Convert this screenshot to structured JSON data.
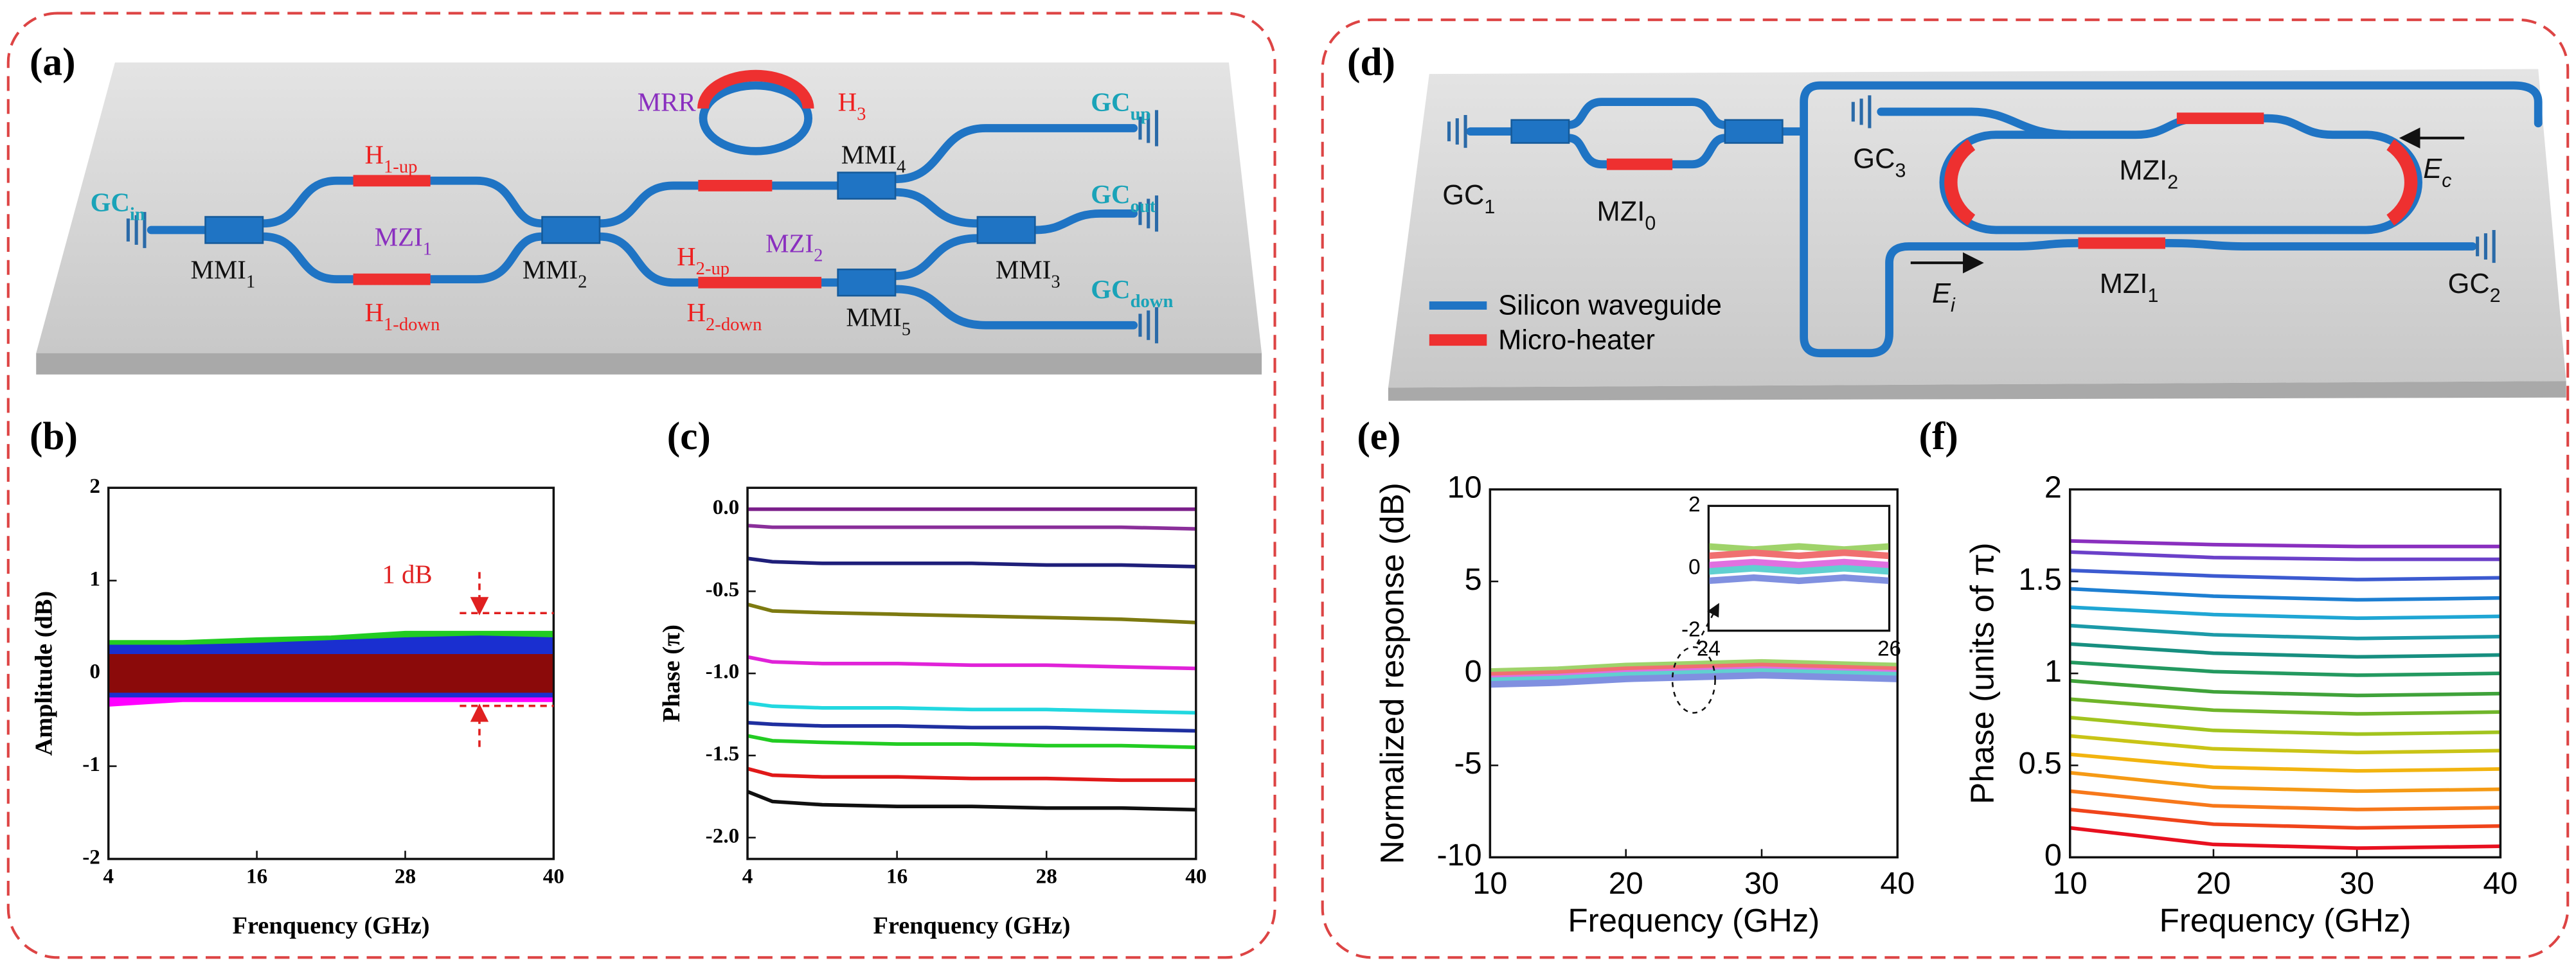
{
  "panel_labels": [
    "(a)",
    "(b)",
    "(c)",
    "(d)",
    "(e)",
    "(f)"
  ],
  "diagram_a": {
    "labels": [
      {
        "text": "GC",
        "sub": "in"
      },
      {
        "text": "MMI",
        "sub": "1"
      },
      {
        "text": "H",
        "sub": "1-up"
      },
      {
        "text": "MZI",
        "sub": "1"
      },
      {
        "text": "H",
        "sub": "1-down"
      },
      {
        "text": "MMI",
        "sub": "2"
      },
      {
        "text": "MRR"
      },
      {
        "text": "H",
        "sub": "3"
      },
      {
        "text": "MMI",
        "sub": "4"
      },
      {
        "text": "H",
        "sub": "2-up"
      },
      {
        "text": "MZI",
        "sub": "2"
      },
      {
        "text": "H",
        "sub": "2-down"
      },
      {
        "text": "MMI",
        "sub": "5"
      },
      {
        "text": "MMI",
        "sub": "3"
      },
      {
        "text": "GC",
        "sub": "up"
      },
      {
        "text": "GC",
        "sub": "out"
      },
      {
        "text": "GC",
        "sub": "down"
      }
    ]
  },
  "diagram_d": {
    "labels": [
      {
        "text": "GC",
        "sub": "1"
      },
      {
        "text": "MZI",
        "sub": "0"
      },
      {
        "text": "GC",
        "sub": "3"
      },
      {
        "text": "MZI",
        "sub": "2"
      },
      {
        "text": "E",
        "sub": "c"
      },
      {
        "text": "E",
        "sub": "i"
      },
      {
        "text": "MZI",
        "sub": "1"
      },
      {
        "text": "GC",
        "sub": "2"
      }
    ],
    "legend": [
      "Silicon waveguide",
      "Micro-heater"
    ]
  },
  "chart_data": [
    {
      "type": "band",
      "xlabel": "Frenquency (GHz)",
      "ylabel": "Amplitude (dB)",
      "xlim": [
        4,
        40
      ],
      "ylim": [
        -2,
        2
      ],
      "xticks": [
        4,
        16,
        28,
        40
      ],
      "yticks": [
        -2,
        -1,
        0,
        1,
        2
      ],
      "x": [
        4,
        10,
        16,
        22,
        28,
        34,
        40
      ],
      "series": [
        {
          "color": "#ff00ff",
          "high": [
            0.2,
            0.2,
            0.2,
            0.2,
            0.2,
            0.25,
            0.2
          ],
          "low": [
            -0.35,
            -0.3,
            -0.3,
            -0.3,
            -0.3,
            -0.3,
            -0.3
          ]
        },
        {
          "color": "#22cc22",
          "high": [
            0.35,
            0.35,
            0.38,
            0.4,
            0.45,
            0.45,
            0.45
          ],
          "low": [
            -0.1,
            -0.1,
            -0.1,
            -0.1,
            -0.1,
            -0.1,
            -0.1
          ]
        },
        {
          "color": "#1a2fd0",
          "high": [
            0.3,
            0.3,
            0.32,
            0.35,
            0.38,
            0.4,
            0.38
          ],
          "low": [
            -0.25,
            -0.25,
            -0.25,
            -0.25,
            -0.25,
            -0.25,
            -0.25
          ]
        },
        {
          "color": "#8b0a0a",
          "high": [
            0.2,
            0.2,
            0.2,
            0.2,
            0.2,
            0.2,
            0.2
          ],
          "low": [
            -0.2,
            -0.2,
            -0.2,
            -0.2,
            -0.2,
            -0.2,
            -0.2
          ]
        }
      ],
      "annotation": "1 dB",
      "bracket_x": 34,
      "bracket": [
        -0.35,
        0.65
      ]
    },
    {
      "type": "line",
      "xlabel": "Frenquency (GHz)",
      "ylabel": "Phase (π)",
      "xlim": [
        4,
        40
      ],
      "ylim": [
        -2.13,
        0.13
      ],
      "xticks": [
        4,
        16,
        28,
        40
      ],
      "yticks": [
        {
          "value": 0,
          "label": "0.0"
        },
        -0.5,
        {
          "value": -1,
          "label": "-1.0"
        },
        -1.5,
        {
          "value": -2,
          "label": "-2.0"
        }
      ],
      "x": [
        4,
        6,
        10,
        16,
        22,
        28,
        34,
        40
      ],
      "series": [
        {
          "color": "#7b1f8a",
          "values": [
            0,
            0,
            0,
            0,
            0,
            0,
            0,
            0
          ]
        },
        {
          "color": "#8a2f9a",
          "values": [
            -0.1,
            -0.11,
            -0.11,
            -0.11,
            -0.11,
            -0.11,
            -0.11,
            -0.12
          ]
        },
        {
          "color": "#1f1f7a",
          "values": [
            -0.3,
            -0.32,
            -0.33,
            -0.33,
            -0.33,
            -0.34,
            -0.34,
            -0.35
          ]
        },
        {
          "color": "#7d7a10",
          "values": [
            -0.58,
            -0.62,
            -0.63,
            -0.64,
            -0.65,
            -0.66,
            -0.67,
            -0.69
          ]
        },
        {
          "color": "#e022d8",
          "values": [
            -0.9,
            -0.93,
            -0.94,
            -0.94,
            -0.95,
            -0.95,
            -0.96,
            -0.97
          ]
        },
        {
          "color": "#22d8e0",
          "values": [
            -1.18,
            -1.2,
            -1.21,
            -1.21,
            -1.22,
            -1.22,
            -1.23,
            -1.24
          ]
        },
        {
          "color": "#1f2fa0",
          "values": [
            -1.3,
            -1.31,
            -1.32,
            -1.32,
            -1.33,
            -1.33,
            -1.34,
            -1.35
          ]
        },
        {
          "color": "#22cc22",
          "values": [
            -1.38,
            -1.41,
            -1.42,
            -1.43,
            -1.43,
            -1.44,
            -1.44,
            -1.45
          ]
        },
        {
          "color": "#e01818",
          "values": [
            -1.58,
            -1.62,
            -1.63,
            -1.63,
            -1.64,
            -1.64,
            -1.65,
            -1.65
          ]
        },
        {
          "color": "#101010",
          "values": [
            -1.72,
            -1.78,
            -1.8,
            -1.81,
            -1.81,
            -1.82,
            -1.82,
            -1.83
          ]
        }
      ]
    },
    {
      "type": "line",
      "xlabel": "Frequency (GHz)",
      "ylabel": "Normalized response (dB)",
      "xlim": [
        10,
        40
      ],
      "ylim": [
        -10,
        10
      ],
      "xticks": [
        10,
        20,
        30,
        40
      ],
      "yticks": [
        -10,
        -5,
        0,
        5,
        10
      ],
      "x": [
        10,
        15,
        20,
        25,
        30,
        35,
        40
      ],
      "series": [
        {
          "color": "#9fd36a",
          "values": [
            0.1,
            0.2,
            0.4,
            0.5,
            0.6,
            0.5,
            0.4
          ]
        },
        {
          "color": "#f07070",
          "values": [
            -0.1,
            0,
            0.2,
            0.3,
            0.4,
            0.3,
            0.2
          ]
        },
        {
          "color": "#e070e0",
          "values": [
            -0.3,
            -0.2,
            0,
            0.1,
            0.2,
            0.1,
            0
          ]
        },
        {
          "color": "#60d0d0",
          "values": [
            -0.4,
            -0.3,
            -0.1,
            0,
            0.1,
            0,
            -0.1
          ]
        },
        {
          "color": "#8090e0",
          "values": [
            -0.6,
            -0.5,
            -0.3,
            -0.2,
            -0.1,
            -0.2,
            -0.3
          ]
        }
      ],
      "inset": {
        "xlim": [
          24,
          26
        ],
        "ylim": [
          -2,
          2
        ],
        "xticks": [
          24,
          26
        ],
        "yticks": [
          -2,
          0,
          2
        ],
        "x": [
          24,
          24.5,
          25,
          25.5,
          26
        ],
        "series": [
          {
            "color": "#9fd36a",
            "values": [
              0.7,
              0.6,
              0.7,
              0.6,
              0.7
            ]
          },
          {
            "color": "#f07070",
            "values": [
              0.4,
              0.5,
              0.4,
              0.5,
              0.4
            ]
          },
          {
            "color": "#e070e0",
            "values": [
              0.1,
              0.2,
              0.1,
              0.2,
              0.1
            ]
          },
          {
            "color": "#60d0d0",
            "values": [
              -0.1,
              0,
              -0.1,
              0,
              -0.1
            ]
          },
          {
            "color": "#8090e0",
            "values": [
              -0.4,
              -0.3,
              -0.4,
              -0.3,
              -0.4
            ]
          }
        ]
      }
    },
    {
      "type": "line",
      "xlabel": "Frequency (GHz)",
      "ylabel": "Phase (units of π)",
      "xlim": [
        10,
        40
      ],
      "ylim": [
        0,
        2
      ],
      "xticks": [
        10,
        20,
        30,
        40
      ],
      "yticks": [
        0,
        0.5,
        1,
        1.5,
        2
      ],
      "x": [
        10,
        20,
        30,
        40
      ],
      "series": [
        {
          "color": "#e8101f",
          "values": [
            0.16,
            0.07,
            0.05,
            0.06
          ]
        },
        {
          "color": "#f0441b",
          "values": [
            0.26,
            0.18,
            0.16,
            0.17
          ]
        },
        {
          "color": "#f7781a",
          "values": [
            0.36,
            0.28,
            0.26,
            0.27
          ]
        },
        {
          "color": "#f59a15",
          "values": [
            0.46,
            0.38,
            0.36,
            0.37
          ]
        },
        {
          "color": "#f2b40f",
          "values": [
            0.56,
            0.49,
            0.47,
            0.48
          ]
        },
        {
          "color": "#c9c416",
          "values": [
            0.66,
            0.59,
            0.57,
            0.58
          ]
        },
        {
          "color": "#a2c41e",
          "values": [
            0.76,
            0.69,
            0.67,
            0.68
          ]
        },
        {
          "color": "#6fb52a",
          "values": [
            0.86,
            0.8,
            0.78,
            0.79
          ]
        },
        {
          "color": "#3fa23a",
          "values": [
            0.96,
            0.9,
            0.88,
            0.89
          ]
        },
        {
          "color": "#239960",
          "values": [
            1.06,
            1.01,
            0.99,
            1.0
          ]
        },
        {
          "color": "#178f80",
          "values": [
            1.16,
            1.11,
            1.09,
            1.1
          ]
        },
        {
          "color": "#1b9aa8",
          "values": [
            1.26,
            1.21,
            1.19,
            1.2
          ]
        },
        {
          "color": "#1fa6d4",
          "values": [
            1.36,
            1.32,
            1.3,
            1.31
          ]
        },
        {
          "color": "#1d7fd2",
          "values": [
            1.46,
            1.42,
            1.4,
            1.41
          ]
        },
        {
          "color": "#3c5ad0",
          "values": [
            1.56,
            1.53,
            1.51,
            1.52
          ]
        },
        {
          "color": "#6b40c9",
          "values": [
            1.66,
            1.63,
            1.62,
            1.62
          ]
        },
        {
          "color": "#8a2fbf",
          "values": [
            1.72,
            1.7,
            1.69,
            1.69
          ]
        }
      ]
    }
  ]
}
